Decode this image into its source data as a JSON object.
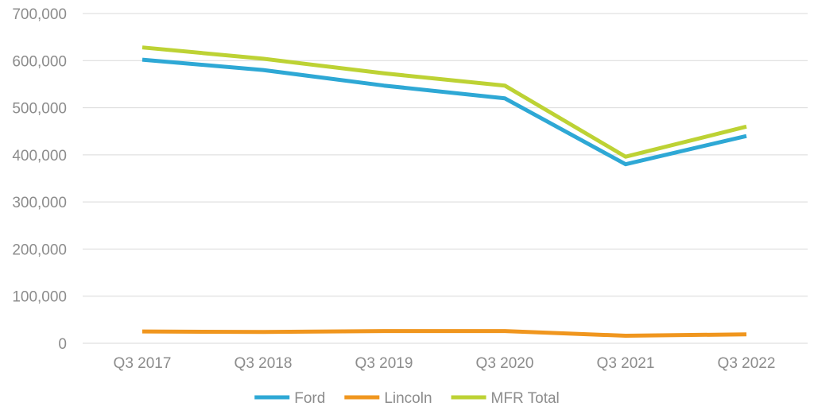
{
  "chart_data": {
    "type": "line",
    "categories": [
      "Q3 2017",
      "Q3 2018",
      "Q3 2019",
      "Q3 2020",
      "Q3 2021",
      "Q3 2022"
    ],
    "series": [
      {
        "name": "Ford",
        "color": "#2ea8d5",
        "values": [
          602000,
          580000,
          547000,
          520000,
          380000,
          440000
        ]
      },
      {
        "name": "Lincoln",
        "color": "#f0961e",
        "values": [
          25000,
          24000,
          26000,
          26000,
          16000,
          19000
        ]
      },
      {
        "name": "MFR Total",
        "color": "#bdd234",
        "values": [
          628000,
          604000,
          573000,
          547000,
          396000,
          460000
        ]
      }
    ],
    "yticks": [
      "0",
      "100,000",
      "200,000",
      "300,000",
      "400,000",
      "500,000",
      "600,000",
      "700,000"
    ],
    "ylim": [
      0,
      700000
    ],
    "grid": true,
    "legend_position": "bottom"
  }
}
